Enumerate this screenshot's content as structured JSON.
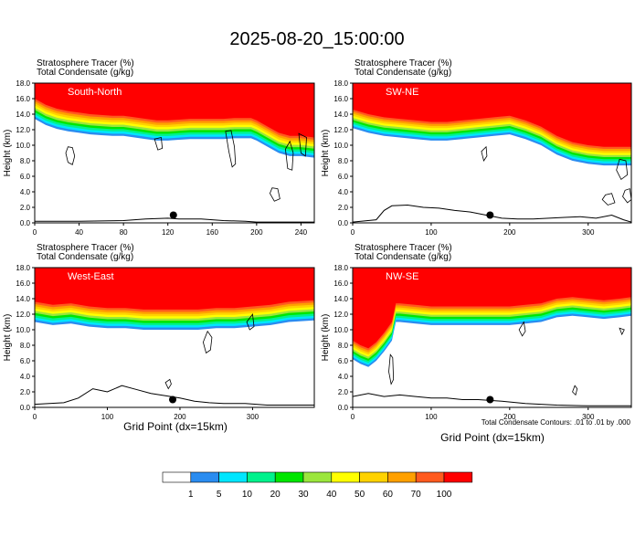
{
  "title": "2025-08-20_15:00:00",
  "footer_note": "Total Condensate Contours: .01 to .01 by .000",
  "colors": {
    "scale": [
      "#ffffff",
      "#2a8cf0",
      "#00e6ff",
      "#00f28c",
      "#00e600",
      "#9be63c",
      "#ffff00",
      "#ffd200",
      "#ffa000",
      "#ff5a1e",
      "#ff0000"
    ],
    "contour": "#000000",
    "terrain": "#000000"
  },
  "colorbar": {
    "labels": [
      "1",
      "5",
      "10",
      "20",
      "30",
      "40",
      "50",
      "60",
      "70",
      "100"
    ]
  },
  "chart_data": [
    {
      "type": "heatmap",
      "label": "South-North",
      "line1": "Stratosphere Tracer   (%)",
      "line2": "Total Condensate   (g/kg)",
      "ylabel": "Height (km)",
      "xlabel": "",
      "ylim": [
        0,
        18
      ],
      "xlim": [
        0,
        252
      ],
      "xticks": [
        0,
        40,
        80,
        120,
        160,
        200,
        240
      ],
      "yticks": [
        0,
        2,
        4,
        6,
        8,
        10,
        12,
        14,
        16,
        18
      ],
      "marker": {
        "x": 125,
        "y": 1.0
      },
      "base_top": 18,
      "front_x": [
        0,
        10,
        20,
        30,
        40,
        50,
        60,
        70,
        80,
        90,
        100,
        110,
        120,
        130,
        140,
        150,
        160,
        170,
        180,
        190,
        195,
        200,
        210,
        220,
        230,
        240,
        252
      ],
      "front_z": [
        16.0,
        15.2,
        14.7,
        14.4,
        14.2,
        14.0,
        13.9,
        13.8,
        13.8,
        13.6,
        13.4,
        13.2,
        13.2,
        13.3,
        13.4,
        13.4,
        13.4,
        13.4,
        13.5,
        13.5,
        13.5,
        13.2,
        12.4,
        11.6,
        11.2,
        11.2,
        11.0
      ],
      "front_depth": 2.6,
      "terrain_x": [
        0,
        40,
        80,
        100,
        120,
        130,
        150,
        170,
        190,
        200,
        252
      ],
      "terrain_z": [
        0.2,
        0.2,
        0.3,
        0.5,
        0.6,
        0.5,
        0.5,
        0.3,
        0.2,
        0.1,
        0.1
      ],
      "contours": [
        [
          [
            28,
            9.0
          ],
          [
            30,
            7.8
          ],
          [
            34,
            7.5
          ],
          [
            36,
            8.6
          ],
          [
            34,
            9.7
          ],
          [
            30,
            9.8
          ]
        ],
        [
          [
            108,
            10.8
          ],
          [
            111,
            9.4
          ],
          [
            115,
            9.6
          ],
          [
            114,
            11.0
          ]
        ],
        [
          [
            172,
            11.8
          ],
          [
            175,
            9.2
          ],
          [
            178,
            7.2
          ],
          [
            181,
            7.6
          ],
          [
            180,
            9.8
          ],
          [
            177,
            11.9
          ]
        ],
        [
          [
            212,
            3.8
          ],
          [
            216,
            2.8
          ],
          [
            221,
            3.1
          ],
          [
            219,
            4.4
          ],
          [
            214,
            4.5
          ]
        ],
        [
          [
            226,
            9.5
          ],
          [
            228,
            7.0
          ],
          [
            232,
            6.8
          ],
          [
            233,
            9.0
          ],
          [
            230,
            10.5
          ]
        ],
        [
          [
            238,
            11.5
          ],
          [
            240,
            9.0
          ],
          [
            244,
            8.6
          ],
          [
            245,
            11.0
          ]
        ]
      ]
    },
    {
      "type": "heatmap",
      "label": "SW-NE",
      "line1": "Stratosphere Tracer   (%)",
      "line2": "Total Condensate   (g/kg)",
      "ylabel": "Height (km)",
      "xlabel": "",
      "ylim": [
        0,
        18
      ],
      "xlim": [
        0,
        355
      ],
      "xticks": [
        0,
        100,
        200,
        300
      ],
      "yticks": [
        0,
        2,
        4,
        6,
        8,
        10,
        12,
        14,
        16,
        18
      ],
      "marker": {
        "x": 175,
        "y": 1.0
      },
      "base_top": 18,
      "front_x": [
        0,
        20,
        40,
        60,
        80,
        100,
        120,
        140,
        160,
        180,
        200,
        220,
        240,
        260,
        280,
        300,
        320,
        340,
        355
      ],
      "front_z": [
        14.6,
        14.0,
        13.6,
        13.4,
        13.2,
        13.0,
        13.0,
        13.2,
        13.4,
        13.6,
        13.8,
        13.2,
        12.4,
        11.2,
        10.4,
        10.0,
        9.8,
        9.8,
        9.8
      ],
      "front_depth": 2.4,
      "terrain_x": [
        0,
        30,
        40,
        50,
        70,
        90,
        110,
        130,
        150,
        170,
        190,
        210,
        230,
        250,
        270,
        290,
        310,
        330,
        345,
        355
      ],
      "terrain_z": [
        0.1,
        0.4,
        1.6,
        2.2,
        2.3,
        2.0,
        1.9,
        1.6,
        1.4,
        1.0,
        0.6,
        0.5,
        0.5,
        0.6,
        0.7,
        0.8,
        0.6,
        1.0,
        0.4,
        0.1
      ],
      "contours": [
        [
          [
            164,
            9.2
          ],
          [
            167,
            8.0
          ],
          [
            171,
            8.6
          ],
          [
            170,
            9.8
          ]
        ],
        [
          [
            318,
            3.0
          ],
          [
            325,
            2.3
          ],
          [
            334,
            2.6
          ],
          [
            330,
            3.8
          ],
          [
            322,
            3.6
          ]
        ],
        [
          [
            336,
            6.8
          ],
          [
            342,
            5.6
          ],
          [
            350,
            6.2
          ],
          [
            348,
            8.0
          ],
          [
            340,
            8.2
          ]
        ],
        [
          [
            344,
            3.4
          ],
          [
            350,
            2.6
          ],
          [
            355,
            3.0
          ],
          [
            353,
            4.4
          ],
          [
            347,
            4.2
          ]
        ]
      ]
    },
    {
      "type": "heatmap",
      "label": "West-East",
      "line1": "Stratosphere Tracer   (%)",
      "line2": "Total Condensate   (g/kg)",
      "ylabel": "Height (km)",
      "xlabel": "",
      "ylim": [
        0,
        18
      ],
      "xlim": [
        0,
        385
      ],
      "xticks": [
        0,
        100,
        200,
        300
      ],
      "yticks": [
        0,
        2,
        4,
        6,
        8,
        10,
        12,
        14,
        16,
        18
      ],
      "marker": {
        "x": 190,
        "y": 1.0
      },
      "base_top": 18,
      "front_x": [
        0,
        25,
        50,
        75,
        100,
        125,
        150,
        175,
        200,
        225,
        250,
        275,
        300,
        325,
        350,
        385
      ],
      "front_z": [
        13.6,
        13.2,
        13.4,
        13.0,
        12.8,
        12.8,
        12.6,
        12.6,
        12.6,
        12.6,
        12.8,
        12.8,
        13.0,
        13.2,
        13.6,
        13.8
      ],
      "front_depth": 2.6,
      "terrain_x": [
        0,
        40,
        60,
        80,
        100,
        120,
        140,
        160,
        180,
        200,
        220,
        240,
        260,
        290,
        320,
        385
      ],
      "terrain_z": [
        0.4,
        0.6,
        1.2,
        2.4,
        2.0,
        2.8,
        2.3,
        1.8,
        1.5,
        1.2,
        0.8,
        0.6,
        0.5,
        0.5,
        0.3,
        0.3
      ],
      "contours": [
        [
          [
            232,
            8.4
          ],
          [
            236,
            7.0
          ],
          [
            242,
            7.4
          ],
          [
            244,
            9.0
          ],
          [
            238,
            9.8
          ]
        ],
        [
          [
            292,
            11.0
          ],
          [
            296,
            10.0
          ],
          [
            302,
            10.4
          ],
          [
            300,
            12.0
          ]
        ],
        [
          [
            180,
            3.2
          ],
          [
            184,
            2.4
          ],
          [
            188,
            3.0
          ],
          [
            186,
            3.6
          ]
        ]
      ]
    },
    {
      "type": "heatmap",
      "label": "NW-SE",
      "line1": "Stratosphere Tracer   (%)",
      "line2": "Total Condensate   (g/kg)",
      "ylabel": "Height (km)",
      "xlabel": "",
      "ylim": [
        0,
        18
      ],
      "xlim": [
        0,
        355
      ],
      "xticks": [
        0,
        100,
        200,
        300
      ],
      "yticks": [
        0,
        2,
        4,
        6,
        8,
        10,
        12,
        14,
        16,
        18
      ],
      "marker": {
        "x": 175,
        "y": 1.0
      },
      "base_top": 18,
      "front_x": [
        0,
        10,
        20,
        30,
        40,
        50,
        55,
        60,
        80,
        100,
        120,
        140,
        160,
        180,
        200,
        220,
        240,
        260,
        280,
        300,
        320,
        340,
        355
      ],
      "front_z": [
        8.6,
        8.0,
        7.6,
        8.4,
        9.6,
        11.0,
        13.4,
        13.4,
        13.2,
        13.0,
        13.0,
        13.0,
        13.0,
        13.0,
        13.0,
        13.2,
        13.4,
        14.0,
        14.2,
        14.0,
        13.8,
        14.0,
        14.2
      ],
      "front_depth": 2.4,
      "terrain_x": [
        0,
        20,
        40,
        60,
        80,
        100,
        120,
        140,
        160,
        190,
        220,
        260,
        300,
        355
      ],
      "terrain_z": [
        1.4,
        1.8,
        1.4,
        1.6,
        1.4,
        1.2,
        1.2,
        1.0,
        1.0,
        0.8,
        0.5,
        0.3,
        0.2,
        0.2
      ],
      "contours": [
        [
          [
            46,
            4.6
          ],
          [
            49,
            3.0
          ],
          [
            52,
            3.6
          ],
          [
            51,
            6.4
          ],
          [
            48,
            6.8
          ]
        ],
        [
          [
            212,
            10.0
          ],
          [
            216,
            9.2
          ],
          [
            220,
            9.8
          ],
          [
            218,
            11.0
          ]
        ],
        [
          [
            280,
            2.0
          ],
          [
            284,
            1.6
          ],
          [
            286,
            2.4
          ],
          [
            283,
            2.8
          ]
        ],
        [
          [
            340,
            10.2
          ],
          [
            343,
            9.4
          ],
          [
            346,
            10.0
          ]
        ]
      ]
    }
  ],
  "xaxis_title": "Grid Point (dx=15km)"
}
